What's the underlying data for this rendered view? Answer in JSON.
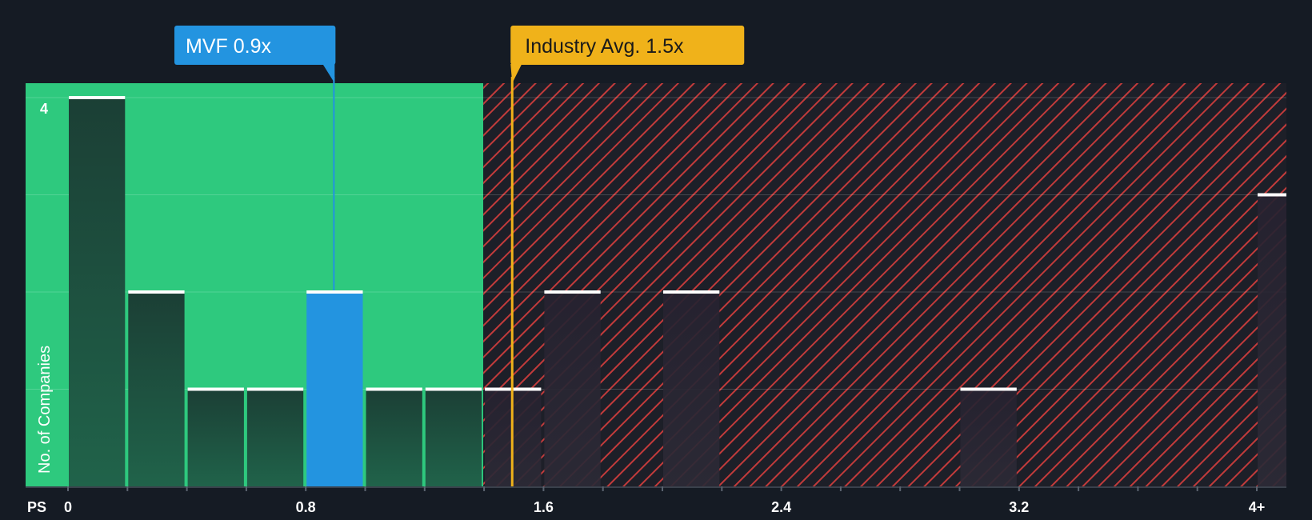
{
  "chart_data": {
    "type": "bar",
    "xlabel": "PS",
    "ylabel": "No. of Companies",
    "x_tick_labels": [
      "0",
      "0.8",
      "1.6",
      "2.4",
      "3.2",
      "4+"
    ],
    "x_tick_values": [
      0,
      0.8,
      1.6,
      2.4,
      3.2,
      4.0
    ],
    "y_tick_labels": [
      "4"
    ],
    "y_tick_values": [
      4
    ],
    "ylim": [
      0,
      4
    ],
    "xlim": [
      0,
      4.0
    ],
    "bin_width": 0.2,
    "bins": [
      {
        "x": 0.0,
        "value": 4
      },
      {
        "x": 0.2,
        "value": 2
      },
      {
        "x": 0.4,
        "value": 1
      },
      {
        "x": 0.6,
        "value": 1
      },
      {
        "x": 0.8,
        "value": 2,
        "highlight": true
      },
      {
        "x": 1.0,
        "value": 1
      },
      {
        "x": 1.2,
        "value": 1
      },
      {
        "x": 1.4,
        "value": 1
      },
      {
        "x": 1.6,
        "value": 2
      },
      {
        "x": 1.8,
        "value": 0
      },
      {
        "x": 2.0,
        "value": 2
      },
      {
        "x": 2.2,
        "value": 0
      },
      {
        "x": 2.4,
        "value": 0
      },
      {
        "x": 2.6,
        "value": 0
      },
      {
        "x": 2.8,
        "value": 0
      },
      {
        "x": 3.0,
        "value": 1
      },
      {
        "x": 3.2,
        "value": 0
      },
      {
        "x": 3.4,
        "value": 0
      },
      {
        "x": 3.6,
        "value": 0
      },
      {
        "x": 3.8,
        "value": 0
      },
      {
        "x": 4.0,
        "value": 3
      }
    ],
    "fair_zone_end": 1.4,
    "company": {
      "label": "MVF 0.9x",
      "value": 0.9
    },
    "industry": {
      "label": "Industry Avg. 1.5x",
      "value": 1.5
    },
    "grid": true,
    "colors": {
      "background": "#151b24",
      "fair_zone": "#2ec97e",
      "bar_dark": "#1e4a3a",
      "bar_highlight": "#2394e0",
      "bar_over": "#2a2530",
      "hatch": "#c23b3b",
      "over_zone_bg": "#1d1f28",
      "company_marker": "#2394e0",
      "industry_marker": "#f0b21a",
      "bar_top": "#ffffff",
      "tick_text": "#ffffff",
      "axis_line": "#3a414c"
    }
  }
}
